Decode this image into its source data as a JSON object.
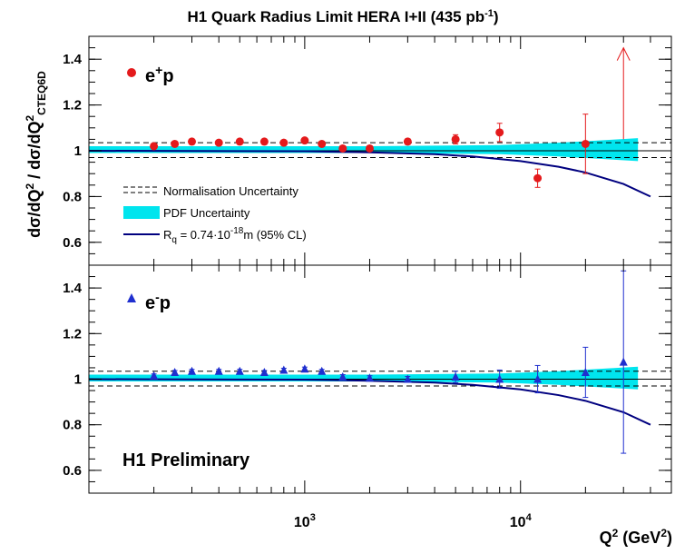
{
  "chart_data": {
    "type": "scatter",
    "title": "H1 Quark Radius Limit HERA I+II (435 pb",
    "title_superscript": "-1",
    "title_close": ")",
    "xlabel_main": "Q",
    "xlabel_sup": "2",
    "xlabel_rest": " (GeV",
    "xlabel_sup2": "2",
    "xlabel_close": ")",
    "ylabel_part1": "dσ/dQ",
    "ylabel_sup": "2",
    "ylabel_part2": " / dσ/dQ",
    "ylabel_sup2": "2",
    "ylabel_sub": "CTEQ6D",
    "x_scale": "log",
    "xlim": [
      100,
      50000
    ],
    "x_tick_labels": [
      {
        "base": "10",
        "exp": "3",
        "value": 1000
      },
      {
        "base": "10",
        "exp": "4",
        "value": 10000
      }
    ],
    "panels": [
      {
        "label_base": "e",
        "label_sup": "+",
        "label_rest": "p",
        "marker": "circle",
        "ylim": [
          0.5,
          1.5
        ],
        "y_ticks": [
          "0.6",
          "0.8",
          "1",
          "1.2",
          "1.4"
        ],
        "y_tick_values": [
          0.6,
          0.8,
          1.0,
          1.2,
          1.4
        ],
        "series": [
          {
            "x": 200,
            "y": 1.02,
            "err": 0.008
          },
          {
            "x": 250,
            "y": 1.03,
            "err": 0.008
          },
          {
            "x": 300,
            "y": 1.04,
            "err": 0.008
          },
          {
            "x": 400,
            "y": 1.035,
            "err": 0.008
          },
          {
            "x": 500,
            "y": 1.04,
            "err": 0.008
          },
          {
            "x": 650,
            "y": 1.04,
            "err": 0.008
          },
          {
            "x": 800,
            "y": 1.035,
            "err": 0.008
          },
          {
            "x": 1000,
            "y": 1.045,
            "err": 0.008
          },
          {
            "x": 1200,
            "y": 1.03,
            "err": 0.008
          },
          {
            "x": 1500,
            "y": 1.01,
            "err": 0.01
          },
          {
            "x": 2000,
            "y": 1.01,
            "err": 0.01
          },
          {
            "x": 3000,
            "y": 1.04,
            "err": 0.012
          },
          {
            "x": 5000,
            "y": 1.05,
            "err": 0.02
          },
          {
            "x": 8000,
            "y": 1.08,
            "err": 0.04
          },
          {
            "x": 12000,
            "y": 0.88,
            "err": 0.04
          },
          {
            "x": 20000,
            "y": 1.03,
            "err": 0.13
          }
        ],
        "arrow_x": 30000,
        "arrow_from": 1.05,
        "arrow_to": 1.45,
        "legend": [
          {
            "kind": "dashed",
            "text": "Normalisation Uncertainty"
          },
          {
            "kind": "band",
            "text": "PDF Uncertainty"
          },
          {
            "kind": "line",
            "text_main": "R",
            "text_sub": "q",
            "text_rest": " = 0.74·10",
            "text_sup": "-18",
            "text_end": "m (95% CL)"
          }
        ]
      },
      {
        "label_base": "e",
        "label_sup": "-",
        "label_rest": "p",
        "marker": "triangle",
        "ylim": [
          0.5,
          1.5
        ],
        "y_ticks": [
          "0.6",
          "0.8",
          "1",
          "1.2",
          "1.4"
        ],
        "y_tick_values": [
          0.6,
          0.8,
          1.0,
          1.2,
          1.4
        ],
        "series": [
          {
            "x": 200,
            "y": 1.015,
            "err": 0.008
          },
          {
            "x": 250,
            "y": 1.03,
            "err": 0.008
          },
          {
            "x": 300,
            "y": 1.035,
            "err": 0.008
          },
          {
            "x": 400,
            "y": 1.035,
            "err": 0.008
          },
          {
            "x": 500,
            "y": 1.035,
            "err": 0.008
          },
          {
            "x": 650,
            "y": 1.03,
            "err": 0.008
          },
          {
            "x": 800,
            "y": 1.04,
            "err": 0.008
          },
          {
            "x": 1000,
            "y": 1.045,
            "err": 0.008
          },
          {
            "x": 1200,
            "y": 1.035,
            "err": 0.008
          },
          {
            "x": 1500,
            "y": 1.01,
            "err": 0.01
          },
          {
            "x": 2000,
            "y": 1.005,
            "err": 0.01
          },
          {
            "x": 3000,
            "y": 1.0,
            "err": 0.012
          },
          {
            "x": 5000,
            "y": 1.01,
            "err": 0.025
          },
          {
            "x": 8000,
            "y": 1.0,
            "err": 0.04
          },
          {
            "x": 12000,
            "y": 1.0,
            "err": 0.06
          },
          {
            "x": 20000,
            "y": 1.03,
            "err": 0.11
          },
          {
            "x": 30000,
            "y": 1.075,
            "err": 0.4
          }
        ],
        "footer_label": "H1 Preliminary"
      }
    ],
    "reference_line": 1.0,
    "normalisation_band": [
      0.97,
      1.035
    ],
    "pdf_band": [
      {
        "x": 100,
        "lo": 0.99,
        "hi": 1.02
      },
      {
        "x": 2000,
        "lo": 0.99,
        "hi": 1.02
      },
      {
        "x": 8000,
        "lo": 0.985,
        "hi": 1.025
      },
      {
        "x": 15000,
        "lo": 0.975,
        "hi": 1.035
      },
      {
        "x": 35000,
        "lo": 0.955,
        "hi": 1.055
      }
    ],
    "model_curve": [
      {
        "x": 100,
        "y": 1.0
      },
      {
        "x": 1000,
        "y": 0.998
      },
      {
        "x": 2000,
        "y": 0.993
      },
      {
        "x": 4000,
        "y": 0.985
      },
      {
        "x": 6000,
        "y": 0.975
      },
      {
        "x": 10000,
        "y": 0.955
      },
      {
        "x": 15000,
        "y": 0.93
      },
      {
        "x": 20000,
        "y": 0.905
      },
      {
        "x": 30000,
        "y": 0.855
      },
      {
        "x": 40000,
        "y": 0.8
      }
    ],
    "colors": {
      "positron": "#e41a1c",
      "electron": "#1f2fcf",
      "pdf_band": "#00e5ee",
      "curve": "#00007f",
      "axis": "#000000"
    }
  }
}
